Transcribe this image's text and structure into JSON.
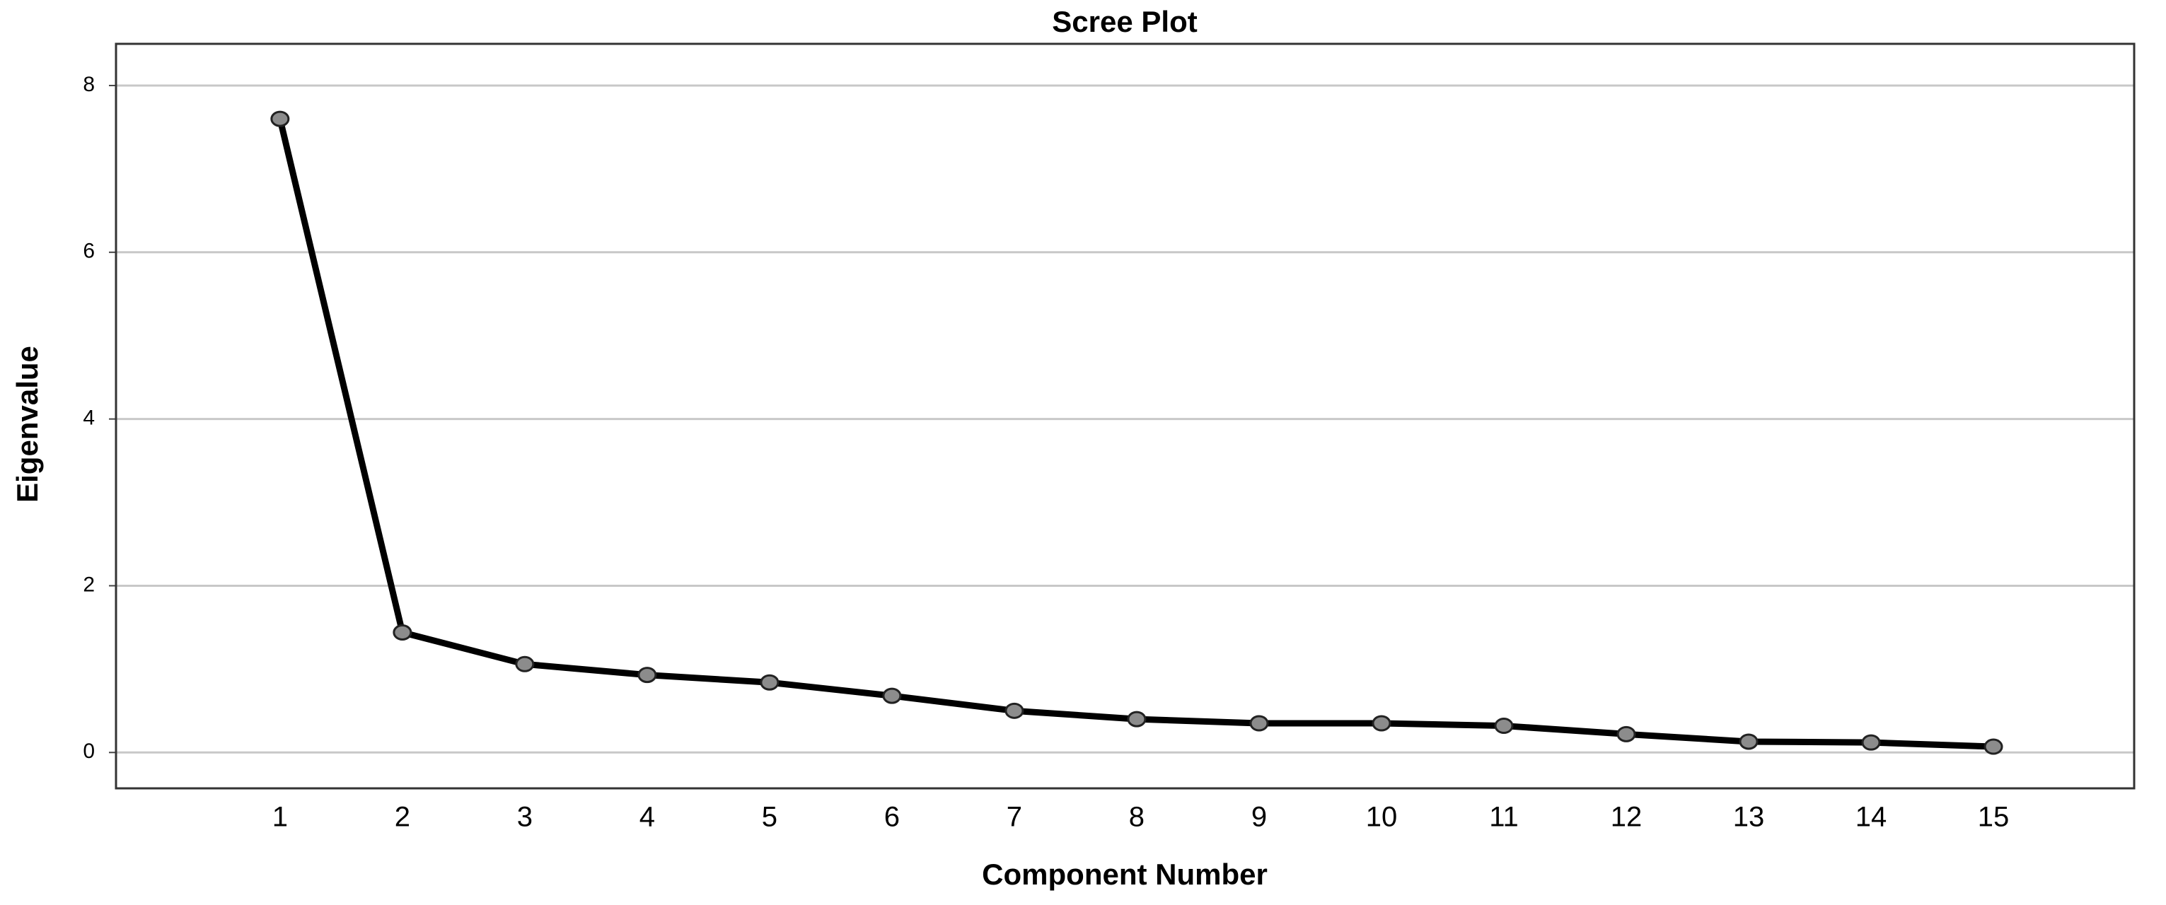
{
  "chart_data": {
    "type": "line",
    "title": "Scree Plot",
    "x_label": "Component Number",
    "y_label": "Eigenvalue",
    "x": [
      1,
      2,
      3,
      4,
      5,
      6,
      7,
      8,
      9,
      10,
      11,
      12,
      13,
      14,
      15
    ],
    "values": [
      7.6,
      1.44,
      1.06,
      0.93,
      0.84,
      0.68,
      0.5,
      0.4,
      0.35,
      0.35,
      0.32,
      0.22,
      0.13,
      0.12,
      0.07
    ],
    "color": "#000000",
    "marker_color": "#8c8c8c",
    "xlim": [
      -0.34,
      16.15
    ],
    "xticks": [
      1,
      2,
      3,
      4,
      5,
      6,
      7,
      8,
      9,
      10,
      11,
      12,
      13,
      14,
      15
    ],
    "ylim": [
      -0.43,
      8.5
    ],
    "yticks": [
      0,
      2,
      4,
      6,
      8
    ],
    "grid": true
  }
}
